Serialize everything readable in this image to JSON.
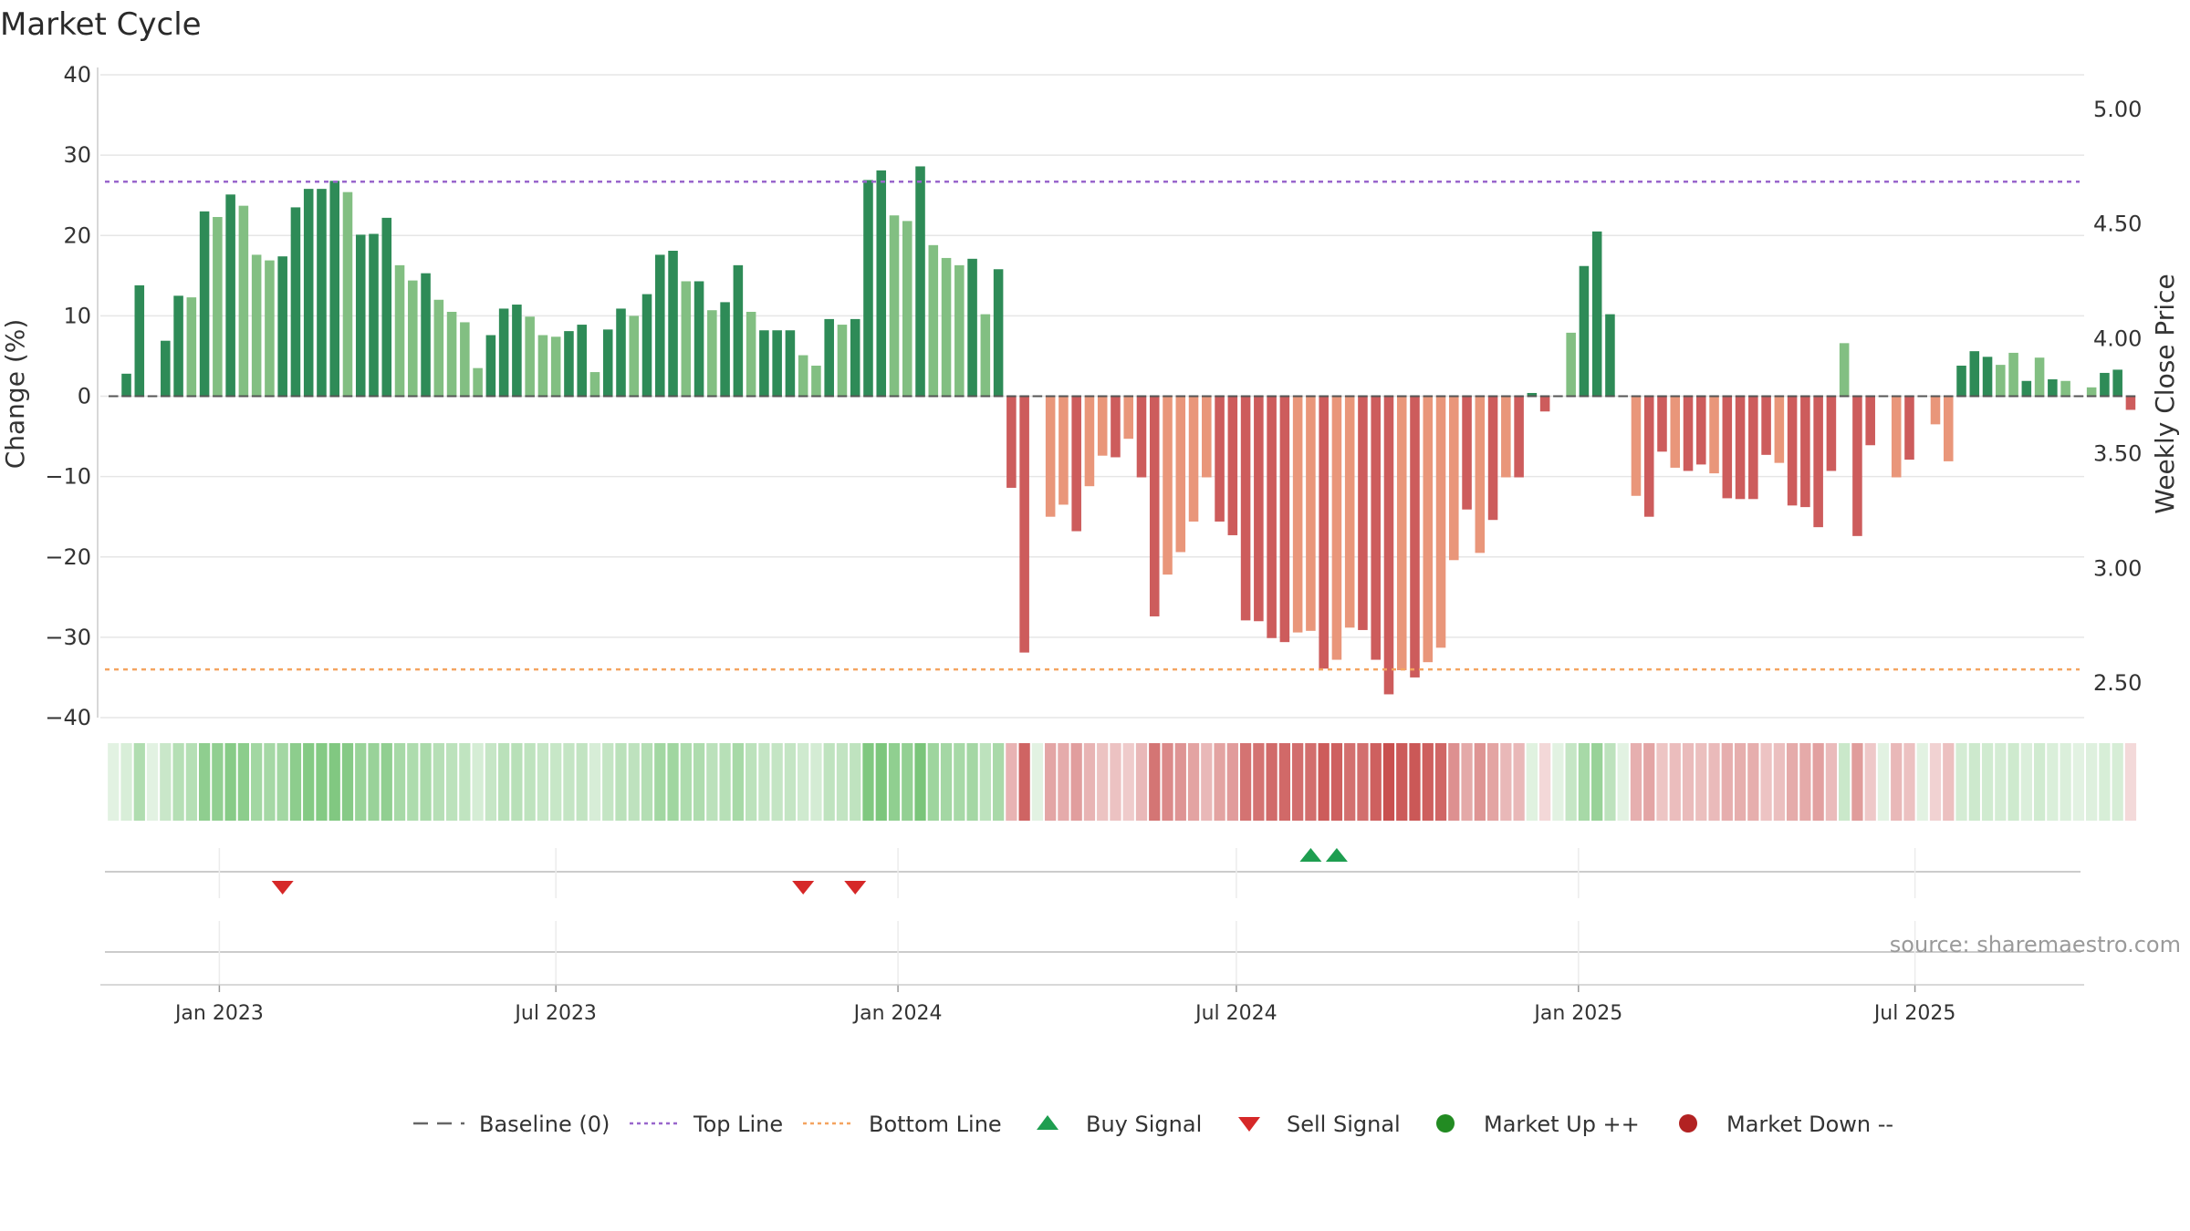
{
  "chart_data": {
    "type": "bar",
    "title": "Market Cycle",
    "ylabel": "Change (%)",
    "y2label": "Weekly Close Price",
    "ylim": [
      -40,
      40
    ],
    "yticks": [
      40,
      30,
      20,
      10,
      0,
      -10,
      -20,
      -30,
      -40
    ],
    "yticks_labels": [
      "40",
      "30",
      "20",
      "10",
      "0",
      "−10",
      "−20",
      "−30",
      "−40"
    ],
    "y2lim": [
      2.35,
      5.15
    ],
    "y2ticks": [
      5.0,
      4.5,
      4.0,
      3.5,
      3.0,
      2.5
    ],
    "y2ticks_labels": [
      "5.00",
      "4.50",
      "4.00",
      "3.50",
      "3.00",
      "2.50"
    ],
    "xlim": [
      "2022-10-29",
      "2025-09-30"
    ],
    "xticks": [
      "2023-01-01",
      "2023-07-01",
      "2024-01-01",
      "2024-07-01",
      "2025-01-01",
      "2025-07-01"
    ],
    "xticks_labels": [
      "Jan 2023",
      "Jul 2023",
      "Jan 2024",
      "Jul 2024",
      "Jan 2025",
      "Jul 2025"
    ],
    "grid": true,
    "first_week": "2022-11-05",
    "colors": {
      "up_dark": "#2e8b57",
      "up_light": "#82bf82",
      "down_dark": "#cd5c5c",
      "down_light": "#e9967a",
      "top_line": "#9966cc",
      "bottom_line": "#f4a460",
      "buy": "#1e9e50",
      "sell": "#d62828",
      "market_up": "#228b22",
      "market_down": "#b22222"
    },
    "top_line": 26.7,
    "bottom_line": -34.0,
    "values": [
      0,
      2.8,
      13.8,
      0,
      6.9,
      12.5,
      12.3,
      23.0,
      22.3,
      25.1,
      23.7,
      17.6,
      16.9,
      17.4,
      23.5,
      25.8,
      25.8,
      26.8,
      25.4,
      20.1,
      20.2,
      22.2,
      16.3,
      14.4,
      15.3,
      12.0,
      10.5,
      9.2,
      3.5,
      7.6,
      10.9,
      11.4,
      9.9,
      7.6,
      7.4,
      8.1,
      8.9,
      3.0,
      8.3,
      10.9,
      10.0,
      12.7,
      17.6,
      18.1,
      14.3,
      14.3,
      10.7,
      11.7,
      16.3,
      10.5,
      8.2,
      8.2,
      8.2,
      5.1,
      3.8,
      9.6,
      8.9,
      9.6,
      26.9,
      28.1,
      22.5,
      21.8,
      28.6,
      18.8,
      17.2,
      16.3,
      17.1,
      10.2,
      15.8,
      -11.4,
      -31.9,
      0,
      -15.0,
      -13.5,
      -16.8,
      -11.2,
      -7.4,
      -7.6,
      -5.3,
      -10.1,
      -27.4,
      -22.2,
      -19.4,
      -15.6,
      -10.1,
      -15.6,
      -17.3,
      -27.9,
      -28.0,
      -30.1,
      -30.6,
      -29.4,
      -29.2,
      -33.9,
      -32.8,
      -28.8,
      -29.1,
      -32.8,
      -37.1,
      -34.1,
      -35.0,
      -33.1,
      -31.3,
      -20.4,
      -14.1,
      -19.5,
      -15.4,
      -10.1,
      -10.1,
      0.4,
      -1.9,
      0,
      7.9,
      16.2,
      20.5,
      10.2,
      0,
      -12.4,
      -15.0,
      -6.9,
      -8.9,
      -9.3,
      -8.5,
      -9.6,
      -12.7,
      -12.8,
      -12.8,
      -7.3,
      -8.3,
      -13.6,
      -13.8,
      -16.3,
      -9.3,
      6.6,
      -17.4,
      -6.1,
      0,
      -10.1,
      -7.9,
      0,
      -3.5,
      -8.1,
      3.8,
      5.6,
      4.9,
      3.9,
      5.4,
      1.9,
      4.8,
      2.1,
      1.9,
      0,
      1.1,
      2.9,
      3.3,
      -1.7
    ],
    "strong": [
      0,
      1,
      1,
      0,
      1,
      1,
      0,
      1,
      0,
      1,
      0,
      0,
      0,
      1,
      1,
      1,
      1,
      1,
      0,
      1,
      1,
      1,
      0,
      0,
      1,
      0,
      0,
      0,
      0,
      1,
      1,
      1,
      0,
      0,
      0,
      1,
      1,
      0,
      1,
      1,
      0,
      1,
      1,
      1,
      0,
      1,
      0,
      1,
      1,
      0,
      1,
      1,
      1,
      0,
      0,
      1,
      0,
      1,
      1,
      1,
      0,
      0,
      1,
      0,
      0,
      0,
      1,
      0,
      1,
      1,
      1,
      0,
      0,
      0,
      1,
      0,
      0,
      1,
      0,
      1,
      1,
      0,
      0,
      0,
      0,
      1,
      1,
      1,
      1,
      1,
      1,
      0,
      0,
      1,
      0,
      0,
      1,
      1,
      1,
      0,
      1,
      0,
      0,
      0,
      1,
      0,
      1,
      0,
      1,
      1,
      1,
      1,
      0,
      1,
      1,
      1,
      0,
      0,
      1,
      1,
      0,
      1,
      1,
      0,
      1,
      1,
      1,
      1,
      0,
      1,
      1,
      1,
      1,
      0,
      1,
      1,
      0,
      0,
      1,
      0,
      0,
      0,
      1,
      1,
      1,
      0,
      0,
      1,
      0,
      1,
      0,
      0,
      0,
      1,
      1,
      1,
      1
    ],
    "buy_signals": [
      "2024-08-10",
      "2024-08-24"
    ],
    "sell_signals": [
      "2023-02-04",
      "2023-11-11",
      "2023-12-09"
    ],
    "legend_position": "bottom",
    "legend": [
      {
        "type": "baseline",
        "label": "Baseline (0)"
      },
      {
        "type": "top",
        "label": "Top Line"
      },
      {
        "type": "bottom",
        "label": "Bottom Line"
      },
      {
        "type": "buy",
        "label": "Buy Signal"
      },
      {
        "type": "sell",
        "label": "Sell Signal"
      },
      {
        "type": "mup",
        "label": "Market Up ++"
      },
      {
        "type": "mdown",
        "label": "Market Down --"
      }
    ],
    "source": "source: sharemaestro.com"
  }
}
